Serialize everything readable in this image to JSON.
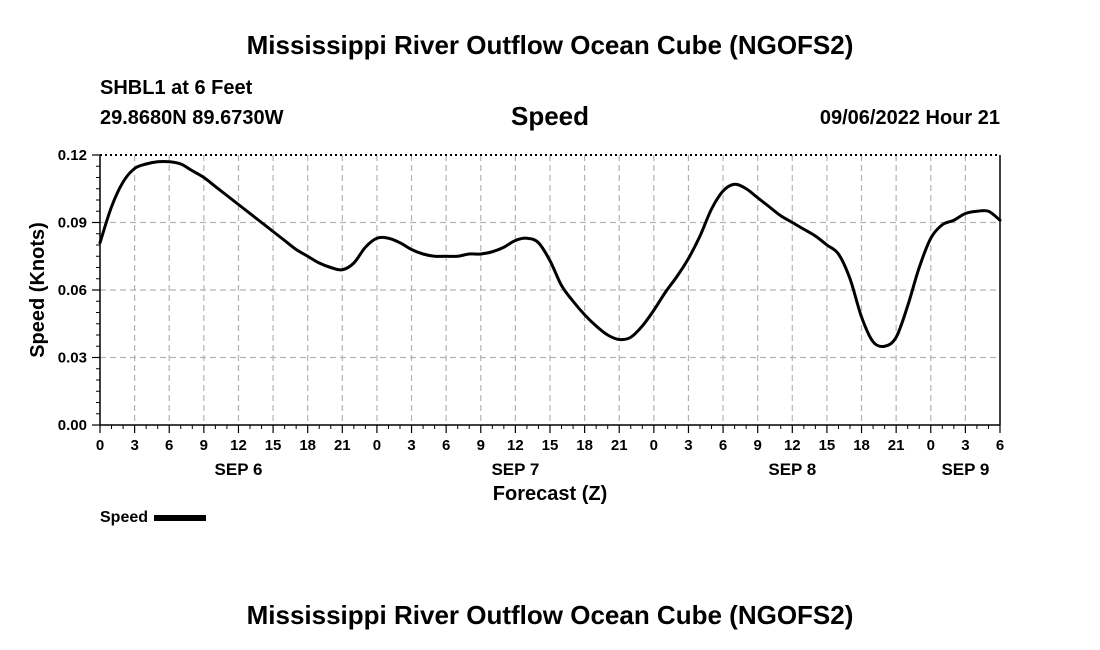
{
  "header": {
    "title": "Mississippi River Outflow Ocean Cube (NGOFS2)",
    "station": "SHBL1 at 6 Feet",
    "coords": "29.8680N  89.6730W",
    "variable": "Speed",
    "datetime": "09/06/2022 Hour 21"
  },
  "footer": {
    "title": "Mississippi River Outflow Ocean Cube (NGOFS2)"
  },
  "legend": {
    "label": "Speed",
    "color": "#000000"
  },
  "chart_data": {
    "type": "line",
    "xlabel": "Forecast (Z)",
    "ylabel": "Speed (Knots)",
    "xlim": [
      0,
      78
    ],
    "ylim": [
      0,
      0.12
    ],
    "grid": true,
    "legend_position": "bottom-left",
    "x_tick_hours": [
      0,
      3,
      6,
      9,
      12,
      15,
      18,
      21,
      24,
      27,
      30,
      33,
      36,
      39,
      42,
      45,
      48,
      51,
      54,
      57,
      60,
      63,
      66,
      69,
      72,
      75,
      78
    ],
    "x_tick_labels": [
      "0",
      "3",
      "6",
      "9",
      "12",
      "15",
      "18",
      "21",
      "0",
      "3",
      "6",
      "9",
      "12",
      "15",
      "18",
      "21",
      "0",
      "3",
      "6",
      "9",
      "12",
      "15",
      "18",
      "21",
      "0",
      "3",
      "6"
    ],
    "y_ticks": [
      0.0,
      0.03,
      0.06,
      0.09,
      0.12
    ],
    "y_tick_labels": [
      "0.00",
      "0.03",
      "0.06",
      "0.09",
      "0.12"
    ],
    "date_labels": [
      {
        "text": "SEP 6",
        "hour": 12
      },
      {
        "text": "SEP 7",
        "hour": 36
      },
      {
        "text": "SEP 8",
        "hour": 60
      },
      {
        "text": "SEP 9",
        "hour": 75
      }
    ],
    "series": [
      {
        "name": "Speed",
        "color": "#000000",
        "x": [
          0,
          1,
          2,
          3,
          4,
          5,
          6,
          7,
          8,
          9,
          10,
          11,
          12,
          13,
          14,
          15,
          16,
          17,
          18,
          19,
          20,
          21,
          22,
          23,
          24,
          25,
          26,
          27,
          28,
          29,
          30,
          31,
          32,
          33,
          34,
          35,
          36,
          37,
          38,
          39,
          40,
          41,
          42,
          43,
          44,
          45,
          46,
          47,
          48,
          49,
          50,
          51,
          52,
          53,
          54,
          55,
          56,
          57,
          58,
          59,
          60,
          61,
          62,
          63,
          64,
          65,
          66,
          67,
          68,
          69,
          70,
          71,
          72,
          73,
          74,
          75,
          76,
          77,
          78
        ],
        "y": [
          0.081,
          0.097,
          0.108,
          0.114,
          0.116,
          0.117,
          0.117,
          0.116,
          0.113,
          0.11,
          0.106,
          0.102,
          0.098,
          0.094,
          0.09,
          0.086,
          0.082,
          0.078,
          0.075,
          0.072,
          0.07,
          0.069,
          0.072,
          0.079,
          0.083,
          0.083,
          0.081,
          0.078,
          0.076,
          0.075,
          0.075,
          0.075,
          0.076,
          0.076,
          0.077,
          0.079,
          0.082,
          0.083,
          0.081,
          0.073,
          0.062,
          0.055,
          0.049,
          0.044,
          0.04,
          0.038,
          0.039,
          0.044,
          0.051,
          0.059,
          0.066,
          0.074,
          0.084,
          0.096,
          0.104,
          0.107,
          0.105,
          0.101,
          0.097,
          0.093,
          0.09,
          0.087,
          0.084,
          0.08,
          0.076,
          0.065,
          0.048,
          0.037,
          0.035,
          0.039,
          0.053,
          0.07,
          0.083,
          0.089,
          0.091,
          0.094,
          0.095,
          0.095,
          0.091
        ]
      }
    ]
  }
}
